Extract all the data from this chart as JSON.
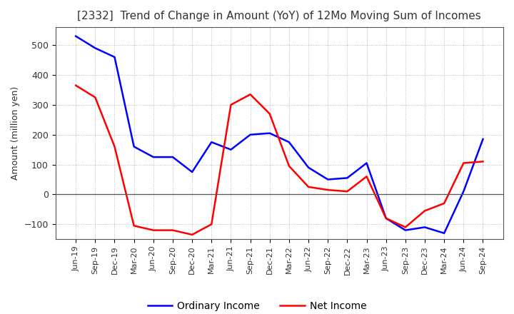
{
  "title": "[2332]  Trend of Change in Amount (YoY) of 12Mo Moving Sum of Incomes",
  "ylabel": "Amount (million yen)",
  "x_labels": [
    "Jun-19",
    "Sep-19",
    "Dec-19",
    "Mar-20",
    "Jun-20",
    "Sep-20",
    "Dec-20",
    "Mar-21",
    "Jun-21",
    "Sep-21",
    "Dec-21",
    "Mar-22",
    "Jun-22",
    "Sep-22",
    "Dec-22",
    "Mar-23",
    "Jun-23",
    "Sep-23",
    "Dec-23",
    "Mar-24",
    "Jun-24",
    "Sep-24"
  ],
  "ordinary_income": [
    530,
    490,
    460,
    160,
    125,
    125,
    75,
    175,
    150,
    200,
    205,
    175,
    90,
    50,
    55,
    105,
    -80,
    -120,
    -110,
    -130,
    10,
    185
  ],
  "net_income": [
    365,
    325,
    160,
    -105,
    -120,
    -120,
    -135,
    -100,
    300,
    335,
    270,
    95,
    25,
    15,
    10,
    60,
    -80,
    -110,
    -55,
    -30,
    105,
    110
  ],
  "ordinary_color": "#0000ff",
  "net_color": "#ff0000",
  "ylim_min": -150,
  "ylim_max": 560,
  "yticks": [
    -100,
    0,
    100,
    200,
    300,
    400,
    500
  ],
  "background_color": "#ffffff",
  "grid_color": "#aaaaaa",
  "legend_ordinary": "Ordinary Income",
  "legend_net": "Net Income"
}
